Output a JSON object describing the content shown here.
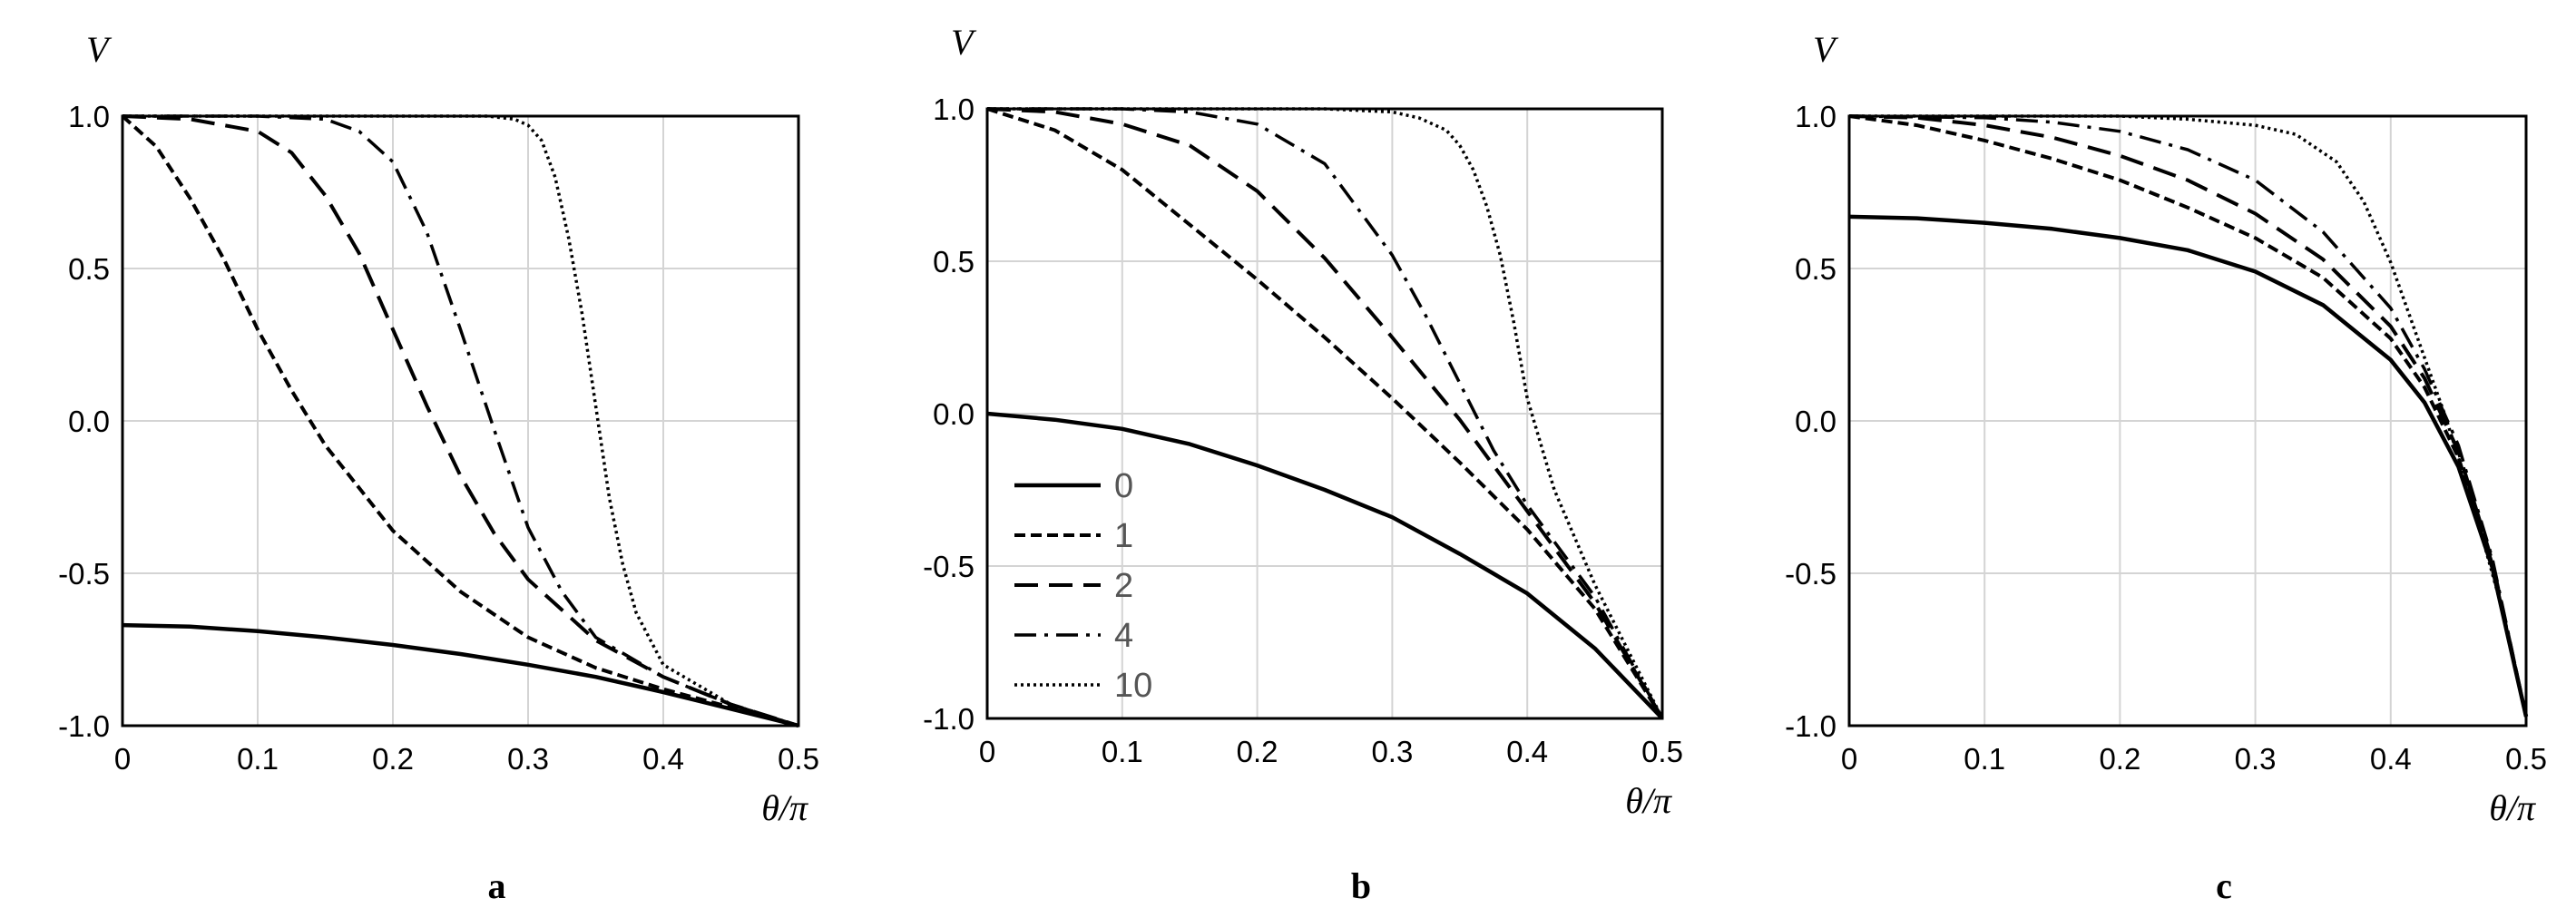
{
  "chart_data": [
    {
      "type": "line",
      "panel": "a",
      "xlabel": "θ/π",
      "ylabel": "V",
      "xlim": [
        0,
        0.5
      ],
      "ylim": [
        -1.0,
        1.0
      ],
      "xticks": [
        "0",
        "0.1",
        "0.2",
        "0.3",
        "0.4",
        "0.5"
      ],
      "yticks": [
        "-1.0",
        "-0.5",
        "0.0",
        "0.5",
        "1.0"
      ],
      "grid": true,
      "series": [
        {
          "name": "0",
          "style": "solid",
          "x": [
            0,
            0.05,
            0.1,
            0.15,
            0.2,
            0.25,
            0.3,
            0.35,
            0.4,
            0.45,
            0.5
          ],
          "y": [
            -0.67,
            -0.675,
            -0.69,
            -0.71,
            -0.735,
            -0.765,
            -0.8,
            -0.84,
            -0.89,
            -0.945,
            -1.0
          ]
        },
        {
          "name": "1",
          "style": "short-dash",
          "x": [
            0,
            0.025,
            0.05,
            0.075,
            0.1,
            0.125,
            0.15,
            0.175,
            0.2,
            0.25,
            0.3,
            0.35,
            0.4,
            0.45,
            0.5
          ],
          "y": [
            1.0,
            0.9,
            0.73,
            0.53,
            0.3,
            0.1,
            -0.08,
            -0.22,
            -0.36,
            -0.56,
            -0.71,
            -0.81,
            -0.88,
            -0.94,
            -1.0
          ]
        },
        {
          "name": "2",
          "style": "long-dash",
          "x": [
            0,
            0.05,
            0.1,
            0.125,
            0.15,
            0.175,
            0.2,
            0.225,
            0.25,
            0.275,
            0.3,
            0.35,
            0.4,
            0.45,
            0.5
          ],
          "y": [
            1.0,
            0.99,
            0.95,
            0.88,
            0.74,
            0.55,
            0.3,
            0.05,
            -0.18,
            -0.37,
            -0.52,
            -0.72,
            -0.84,
            -0.93,
            -1.0
          ]
        },
        {
          "name": "4",
          "style": "dash-dot",
          "x": [
            0,
            0.1,
            0.15,
            0.175,
            0.2,
            0.225,
            0.25,
            0.275,
            0.3,
            0.325,
            0.35,
            0.4,
            0.45,
            0.5
          ],
          "y": [
            1.0,
            1.0,
            0.99,
            0.95,
            0.85,
            0.62,
            0.3,
            -0.03,
            -0.35,
            -0.56,
            -0.71,
            -0.84,
            -0.93,
            -1.0
          ]
        },
        {
          "name": "10",
          "style": "dotted",
          "x": [
            0,
            0.2,
            0.27,
            0.29,
            0.3,
            0.31,
            0.32,
            0.33,
            0.34,
            0.35,
            0.36,
            0.37,
            0.38,
            0.4,
            0.45,
            0.5
          ],
          "y": [
            1.0,
            1.0,
            1.0,
            0.99,
            0.97,
            0.92,
            0.8,
            0.6,
            0.35,
            0.05,
            -0.25,
            -0.47,
            -0.63,
            -0.8,
            -0.93,
            -1.0
          ]
        }
      ]
    },
    {
      "type": "line",
      "panel": "b",
      "xlabel": "θ/π",
      "ylabel": "V",
      "xlim": [
        0,
        0.5
      ],
      "ylim": [
        -1.0,
        1.0
      ],
      "xticks": [
        "0",
        "0.1",
        "0.2",
        "0.3",
        "0.4",
        "0.5"
      ],
      "yticks": [
        "-1.0",
        "-0.5",
        "0.0",
        "0.5",
        "1.0"
      ],
      "grid": true,
      "legend": "lower-left",
      "series": [
        {
          "name": "0",
          "style": "solid",
          "x": [
            0,
            0.05,
            0.1,
            0.15,
            0.2,
            0.25,
            0.3,
            0.35,
            0.4,
            0.45,
            0.5
          ],
          "y": [
            0.0,
            -0.02,
            -0.05,
            -0.1,
            -0.17,
            -0.25,
            -0.34,
            -0.46,
            -0.59,
            -0.77,
            -1.0
          ]
        },
        {
          "name": "1",
          "style": "short-dash",
          "x": [
            0,
            0.05,
            0.1,
            0.15,
            0.2,
            0.25,
            0.3,
            0.35,
            0.4,
            0.45,
            0.5
          ],
          "y": [
            1.0,
            0.93,
            0.8,
            0.62,
            0.44,
            0.25,
            0.05,
            -0.16,
            -0.38,
            -0.64,
            -1.0
          ]
        },
        {
          "name": "2",
          "style": "long-dash",
          "x": [
            0,
            0.05,
            0.1,
            0.15,
            0.2,
            0.25,
            0.3,
            0.35,
            0.4,
            0.45,
            0.5
          ],
          "y": [
            1.0,
            0.99,
            0.95,
            0.88,
            0.73,
            0.51,
            0.25,
            -0.02,
            -0.32,
            -0.62,
            -1.0
          ]
        },
        {
          "name": "4",
          "style": "dash-dot",
          "x": [
            0,
            0.1,
            0.15,
            0.2,
            0.25,
            0.3,
            0.325,
            0.35,
            0.375,
            0.4,
            0.45,
            0.5
          ],
          "y": [
            1.0,
            1.0,
            0.99,
            0.95,
            0.82,
            0.52,
            0.32,
            0.1,
            -0.12,
            -0.3,
            -0.6,
            -1.0
          ]
        },
        {
          "name": "10",
          "style": "dotted",
          "x": [
            0,
            0.25,
            0.3,
            0.32,
            0.34,
            0.35,
            0.36,
            0.37,
            0.38,
            0.39,
            0.4,
            0.42,
            0.45,
            0.5
          ],
          "y": [
            1.0,
            1.0,
            0.99,
            0.97,
            0.93,
            0.88,
            0.8,
            0.68,
            0.52,
            0.3,
            0.05,
            -0.25,
            -0.56,
            -1.0
          ]
        }
      ]
    },
    {
      "type": "line",
      "panel": "c",
      "xlabel": "θ/π",
      "ylabel": "V",
      "xlim": [
        0,
        0.5
      ],
      "ylim": [
        -1.0,
        1.0
      ],
      "xticks": [
        "0",
        "0.1",
        "0.2",
        "0.3",
        "0.4",
        "0.5"
      ],
      "yticks": [
        "-1.0",
        "-0.5",
        "0.0",
        "0.5",
        "1.0"
      ],
      "grid": true,
      "series": [
        {
          "name": "0",
          "style": "solid",
          "x": [
            0,
            0.05,
            0.1,
            0.15,
            0.2,
            0.25,
            0.3,
            0.35,
            0.4,
            0.425,
            0.45,
            0.475,
            0.5
          ],
          "y": [
            0.67,
            0.665,
            0.65,
            0.63,
            0.6,
            0.56,
            0.49,
            0.38,
            0.2,
            0.06,
            -0.15,
            -0.48,
            -0.97
          ]
        },
        {
          "name": "1",
          "style": "short-dash",
          "x": [
            0,
            0.05,
            0.1,
            0.15,
            0.2,
            0.25,
            0.3,
            0.35,
            0.4,
            0.425,
            0.45,
            0.475,
            0.5
          ],
          "y": [
            1.0,
            0.97,
            0.92,
            0.86,
            0.79,
            0.7,
            0.6,
            0.47,
            0.27,
            0.11,
            -0.12,
            -0.47,
            -0.97
          ]
        },
        {
          "name": "2",
          "style": "long-dash",
          "x": [
            0,
            0.05,
            0.1,
            0.15,
            0.2,
            0.25,
            0.3,
            0.35,
            0.4,
            0.425,
            0.45,
            0.475,
            0.5
          ],
          "y": [
            1.0,
            0.995,
            0.97,
            0.93,
            0.87,
            0.79,
            0.68,
            0.53,
            0.31,
            0.14,
            -0.1,
            -0.46,
            -0.97
          ]
        },
        {
          "name": "4",
          "style": "dash-dot",
          "x": [
            0,
            0.1,
            0.15,
            0.2,
            0.25,
            0.3,
            0.35,
            0.4,
            0.425,
            0.45,
            0.475,
            0.5
          ],
          "y": [
            1.0,
            0.995,
            0.98,
            0.95,
            0.89,
            0.79,
            0.62,
            0.37,
            0.17,
            -0.08,
            -0.45,
            -0.97
          ]
        },
        {
          "name": "10",
          "style": "dotted",
          "x": [
            0,
            0.2,
            0.25,
            0.3,
            0.33,
            0.36,
            0.38,
            0.4,
            0.42,
            0.44,
            0.46,
            0.48,
            0.5
          ],
          "y": [
            1.0,
            1.0,
            0.99,
            0.97,
            0.94,
            0.85,
            0.72,
            0.52,
            0.27,
            0.02,
            -0.26,
            -0.58,
            -0.97
          ]
        }
      ]
    }
  ]
}
